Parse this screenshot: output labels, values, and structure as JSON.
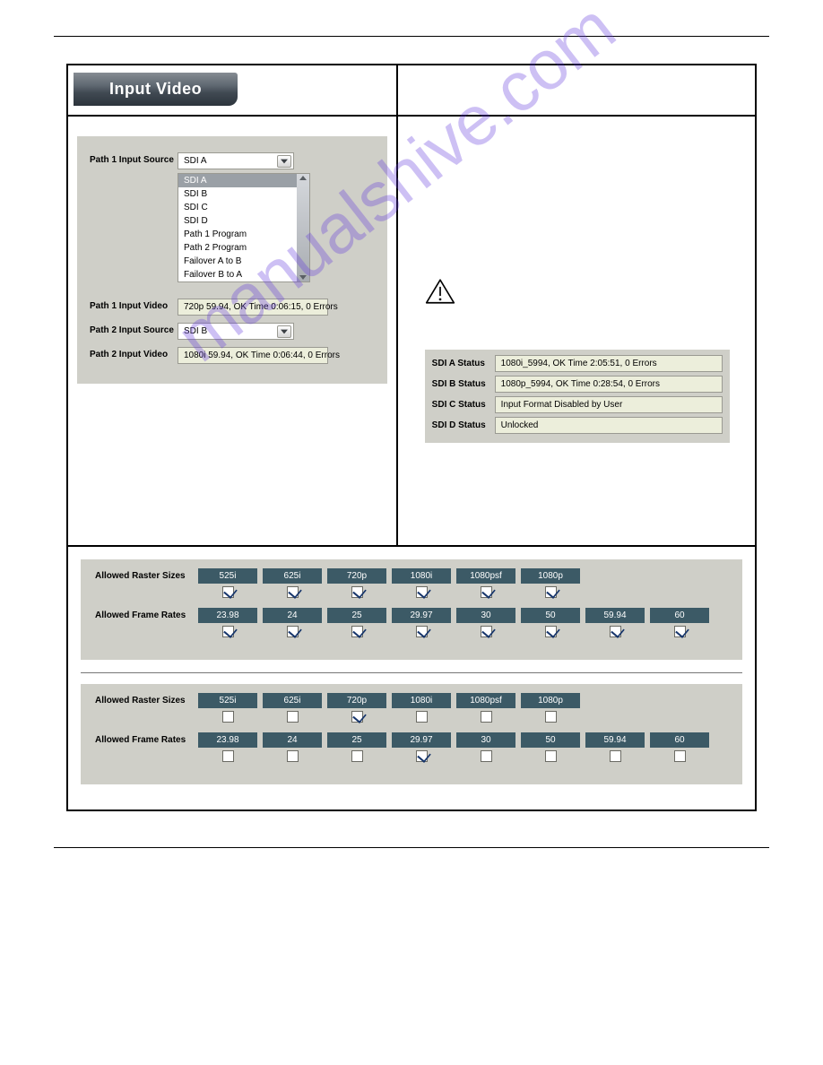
{
  "watermark_text": "manualshive.com",
  "banner_label": "Input Video",
  "left_panel": {
    "path1_source_label": "Path 1 Input Source",
    "path1_source_value": "SDI A",
    "path1_source_options": [
      {
        "label": "SDI A",
        "selected": true
      },
      {
        "label": "SDI B",
        "selected": false
      },
      {
        "label": "SDI C",
        "selected": false
      },
      {
        "label": "SDI D",
        "selected": false
      },
      {
        "label": "Path 1 Program",
        "selected": false
      },
      {
        "label": "Path 2 Program",
        "selected": false
      },
      {
        "label": "Failover A to B",
        "selected": false
      },
      {
        "label": "Failover B to A",
        "selected": false
      }
    ],
    "path1_video_label": "Path 1 Input Video",
    "path1_video_value": "720p 59.94, OK Time 0:06:15, 0 Errors",
    "path2_source_label": "Path 2 Input Source",
    "path2_source_value": "SDI B",
    "path2_video_label": "Path 2 Input Video",
    "path2_video_value": "1080i 59.94, OK Time 0:06:44, 0 Errors"
  },
  "status": {
    "rows": [
      {
        "label": "SDI A Status",
        "value": "1080i_5994, OK Time 2:05:51, 0 Errors"
      },
      {
        "label": "SDI B Status",
        "value": "1080p_5994, OK Time 0:28:54, 0 Errors"
      },
      {
        "label": "SDI C Status",
        "value": "Input Format Disabled by User"
      },
      {
        "label": "SDI D Status",
        "value": "Unlocked"
      }
    ]
  },
  "allowed": {
    "raster_caption": "Allowed Raster Sizes",
    "frame_caption": "Allowed Frame Rates",
    "raster_chips": [
      "525i",
      "625i",
      "720p",
      "1080i",
      "1080psf",
      "1080p"
    ],
    "frame_chips": [
      "23.98",
      "24",
      "25",
      "29.97",
      "30",
      "50",
      "59.94",
      "60"
    ],
    "set1_raster_checked": [
      true,
      true,
      true,
      true,
      true,
      true
    ],
    "set1_frame_checked": [
      true,
      true,
      true,
      true,
      true,
      true,
      true,
      true
    ],
    "set2_raster_checked": [
      false,
      false,
      true,
      false,
      false,
      false
    ],
    "set2_frame_checked": [
      false,
      false,
      false,
      true,
      false,
      false,
      false,
      false
    ]
  },
  "colors": {
    "panel_bg": "#cfcfc8",
    "readonly_bg": "#eceedb",
    "chip_bg": "#3c5a66",
    "chip_fg": "#ffffff",
    "watermark": "rgba(100,60,220,0.32)"
  }
}
